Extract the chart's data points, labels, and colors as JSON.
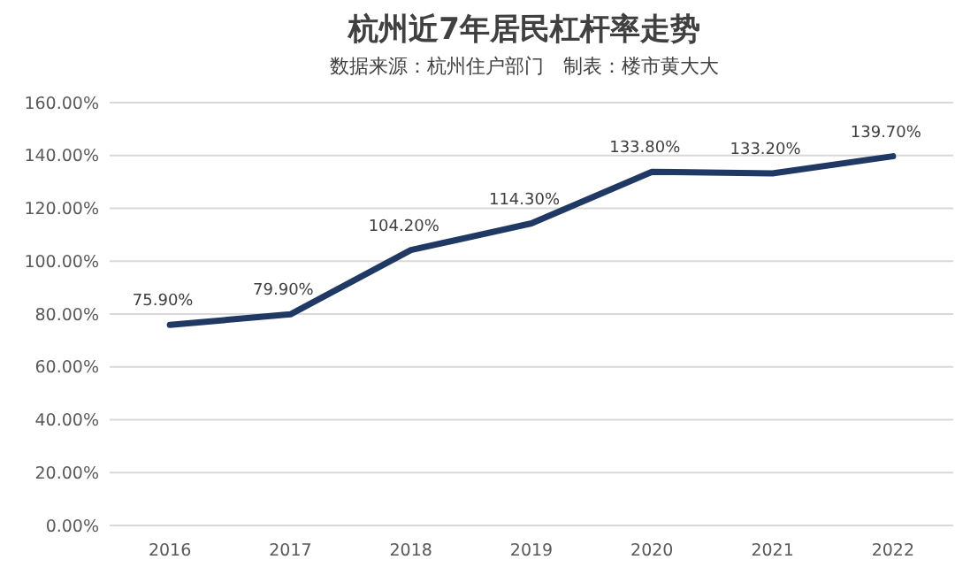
{
  "chart_data": {
    "type": "line",
    "title": "杭州近7年居民杠杆率走势",
    "subtitle": "数据来源：杭州住户部门　制表：楼市黄大大",
    "categories": [
      "2016",
      "2017",
      "2018",
      "2019",
      "2020",
      "2021",
      "2022"
    ],
    "series": [
      {
        "color": "#203864",
        "values": [
          75.9,
          79.9,
          104.2,
          114.3,
          133.8,
          133.2,
          139.7
        ],
        "value_labels": [
          "75.90%",
          "79.90%",
          "104.20%",
          "114.30%",
          "133.80%",
          "133.20%",
          "139.70%"
        ]
      }
    ],
    "ylim": [
      0,
      160
    ],
    "yticks": [
      {
        "value": 0,
        "label": "0.00%"
      },
      {
        "value": 20,
        "label": "20.00%"
      },
      {
        "value": 40,
        "label": "40.00%"
      },
      {
        "value": 60,
        "label": "60.00%"
      },
      {
        "value": 80,
        "label": "80.00%"
      },
      {
        "value": 100,
        "label": "100.00%"
      },
      {
        "value": 120,
        "label": "120.00%"
      },
      {
        "value": 140,
        "label": "140.00%"
      },
      {
        "value": 160,
        "label": "160.00%"
      }
    ],
    "grid": "y",
    "marker": "none",
    "line_style": "solid"
  }
}
